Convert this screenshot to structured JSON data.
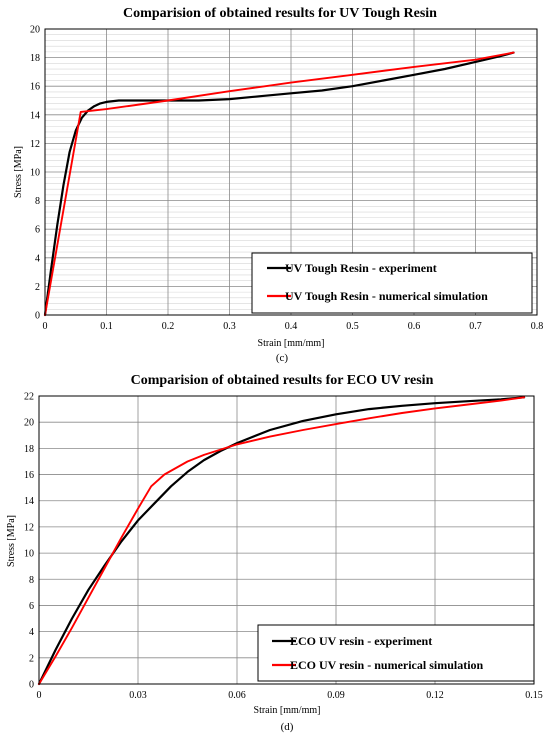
{
  "chart_data": [
    {
      "type": "line",
      "caption": "(c)",
      "title": "Comparision of obtained results for UV Tough Resin",
      "xlabel": "Strain [mm/mm]",
      "ylabel": "Stress [MPa]",
      "xlim": [
        0,
        0.8
      ],
      "ylim": [
        0,
        20
      ],
      "xticks": [
        0,
        0.1,
        0.2,
        0.3,
        0.4,
        0.5,
        0.6,
        0.7,
        0.8
      ],
      "xtick_labels": [
        "0",
        "0.1",
        "0.2",
        "0.3",
        "0.4",
        "0.5",
        "0.6",
        "0.7",
        "0.8"
      ],
      "yticks": [
        0,
        2,
        4,
        6,
        8,
        10,
        12,
        14,
        16,
        18,
        20
      ],
      "ytick_labels": [
        "0",
        "2",
        "4",
        "6",
        "8",
        "10",
        "12",
        "14",
        "16",
        "18",
        "20"
      ],
      "grid": true,
      "minor_y_grid": true,
      "legend_position": "bottom-right",
      "series": [
        {
          "name": "UV Tough Resin - experiment",
          "color": "#000000",
          "x": [
            0,
            0.01,
            0.02,
            0.03,
            0.04,
            0.05,
            0.06,
            0.07,
            0.08,
            0.09,
            0.1,
            0.12,
            0.15,
            0.2,
            0.25,
            0.3,
            0.35,
            0.4,
            0.45,
            0.5,
            0.55,
            0.6,
            0.65,
            0.7,
            0.74,
            0.762
          ],
          "y": [
            0,
            3.2,
            6.3,
            9.1,
            11.4,
            12.9,
            13.8,
            14.3,
            14.6,
            14.8,
            14.9,
            15.0,
            15.0,
            15.0,
            15.0,
            15.1,
            15.3,
            15.5,
            15.7,
            16.0,
            16.4,
            16.8,
            17.2,
            17.7,
            18.1,
            18.35
          ]
        },
        {
          "name": "UV Tough Resin - numerical simulation",
          "color": "#ff0000",
          "x": [
            0,
            0.058,
            0.1,
            0.2,
            0.3,
            0.4,
            0.5,
            0.6,
            0.7,
            0.762
          ],
          "y": [
            0,
            14.2,
            14.4,
            15.0,
            15.65,
            16.25,
            16.8,
            17.35,
            17.85,
            18.35
          ]
        }
      ]
    },
    {
      "type": "line",
      "caption": "(d)",
      "title": "Comparision of obtained results for ECO UV resin",
      "xlabel": "Strain [mm/mm]",
      "ylabel": "Stress [MPa]",
      "xlim": [
        0,
        0.15
      ],
      "ylim": [
        0,
        22
      ],
      "xticks": [
        0,
        0.03,
        0.06,
        0.09,
        0.12,
        0.15
      ],
      "xtick_labels": [
        "0",
        "0.03",
        "0.06",
        "0.09",
        "0.12",
        "0.15"
      ],
      "yticks": [
        0,
        2,
        4,
        6,
        8,
        10,
        12,
        14,
        16,
        18,
        20,
        22
      ],
      "ytick_labels": [
        "0",
        "2",
        "4",
        "6",
        "8",
        "10",
        "12",
        "14",
        "16",
        "18",
        "20",
        "22"
      ],
      "grid": true,
      "minor_y_grid": false,
      "legend_position": "bottom-right",
      "series": [
        {
          "name": "ECO UV resin - experiment",
          "color": "#000000",
          "x": [
            0,
            0.005,
            0.01,
            0.015,
            0.02,
            0.025,
            0.03,
            0.035,
            0.04,
            0.045,
            0.05,
            0.055,
            0.06,
            0.07,
            0.08,
            0.09,
            0.1,
            0.11,
            0.12,
            0.13,
            0.14,
            0.147
          ],
          "y": [
            0,
            2.6,
            5.0,
            7.2,
            9.1,
            10.9,
            12.5,
            13.8,
            15.1,
            16.2,
            17.1,
            17.8,
            18.4,
            19.4,
            20.1,
            20.6,
            21.0,
            21.25,
            21.45,
            21.6,
            21.75,
            21.9
          ]
        },
        {
          "name": "ECO UV resin - numerical simulation",
          "color": "#ff0000",
          "x": [
            0,
            0.005,
            0.01,
            0.015,
            0.02,
            0.025,
            0.03,
            0.034,
            0.038,
            0.045,
            0.05,
            0.06,
            0.07,
            0.08,
            0.09,
            0.1,
            0.11,
            0.12,
            0.13,
            0.14,
            0.147
          ],
          "y": [
            0,
            2.1,
            4.3,
            6.6,
            8.9,
            11.2,
            13.4,
            15.1,
            16.0,
            17.0,
            17.5,
            18.3,
            18.9,
            19.4,
            19.85,
            20.3,
            20.7,
            21.05,
            21.35,
            21.65,
            21.9
          ]
        }
      ]
    }
  ]
}
